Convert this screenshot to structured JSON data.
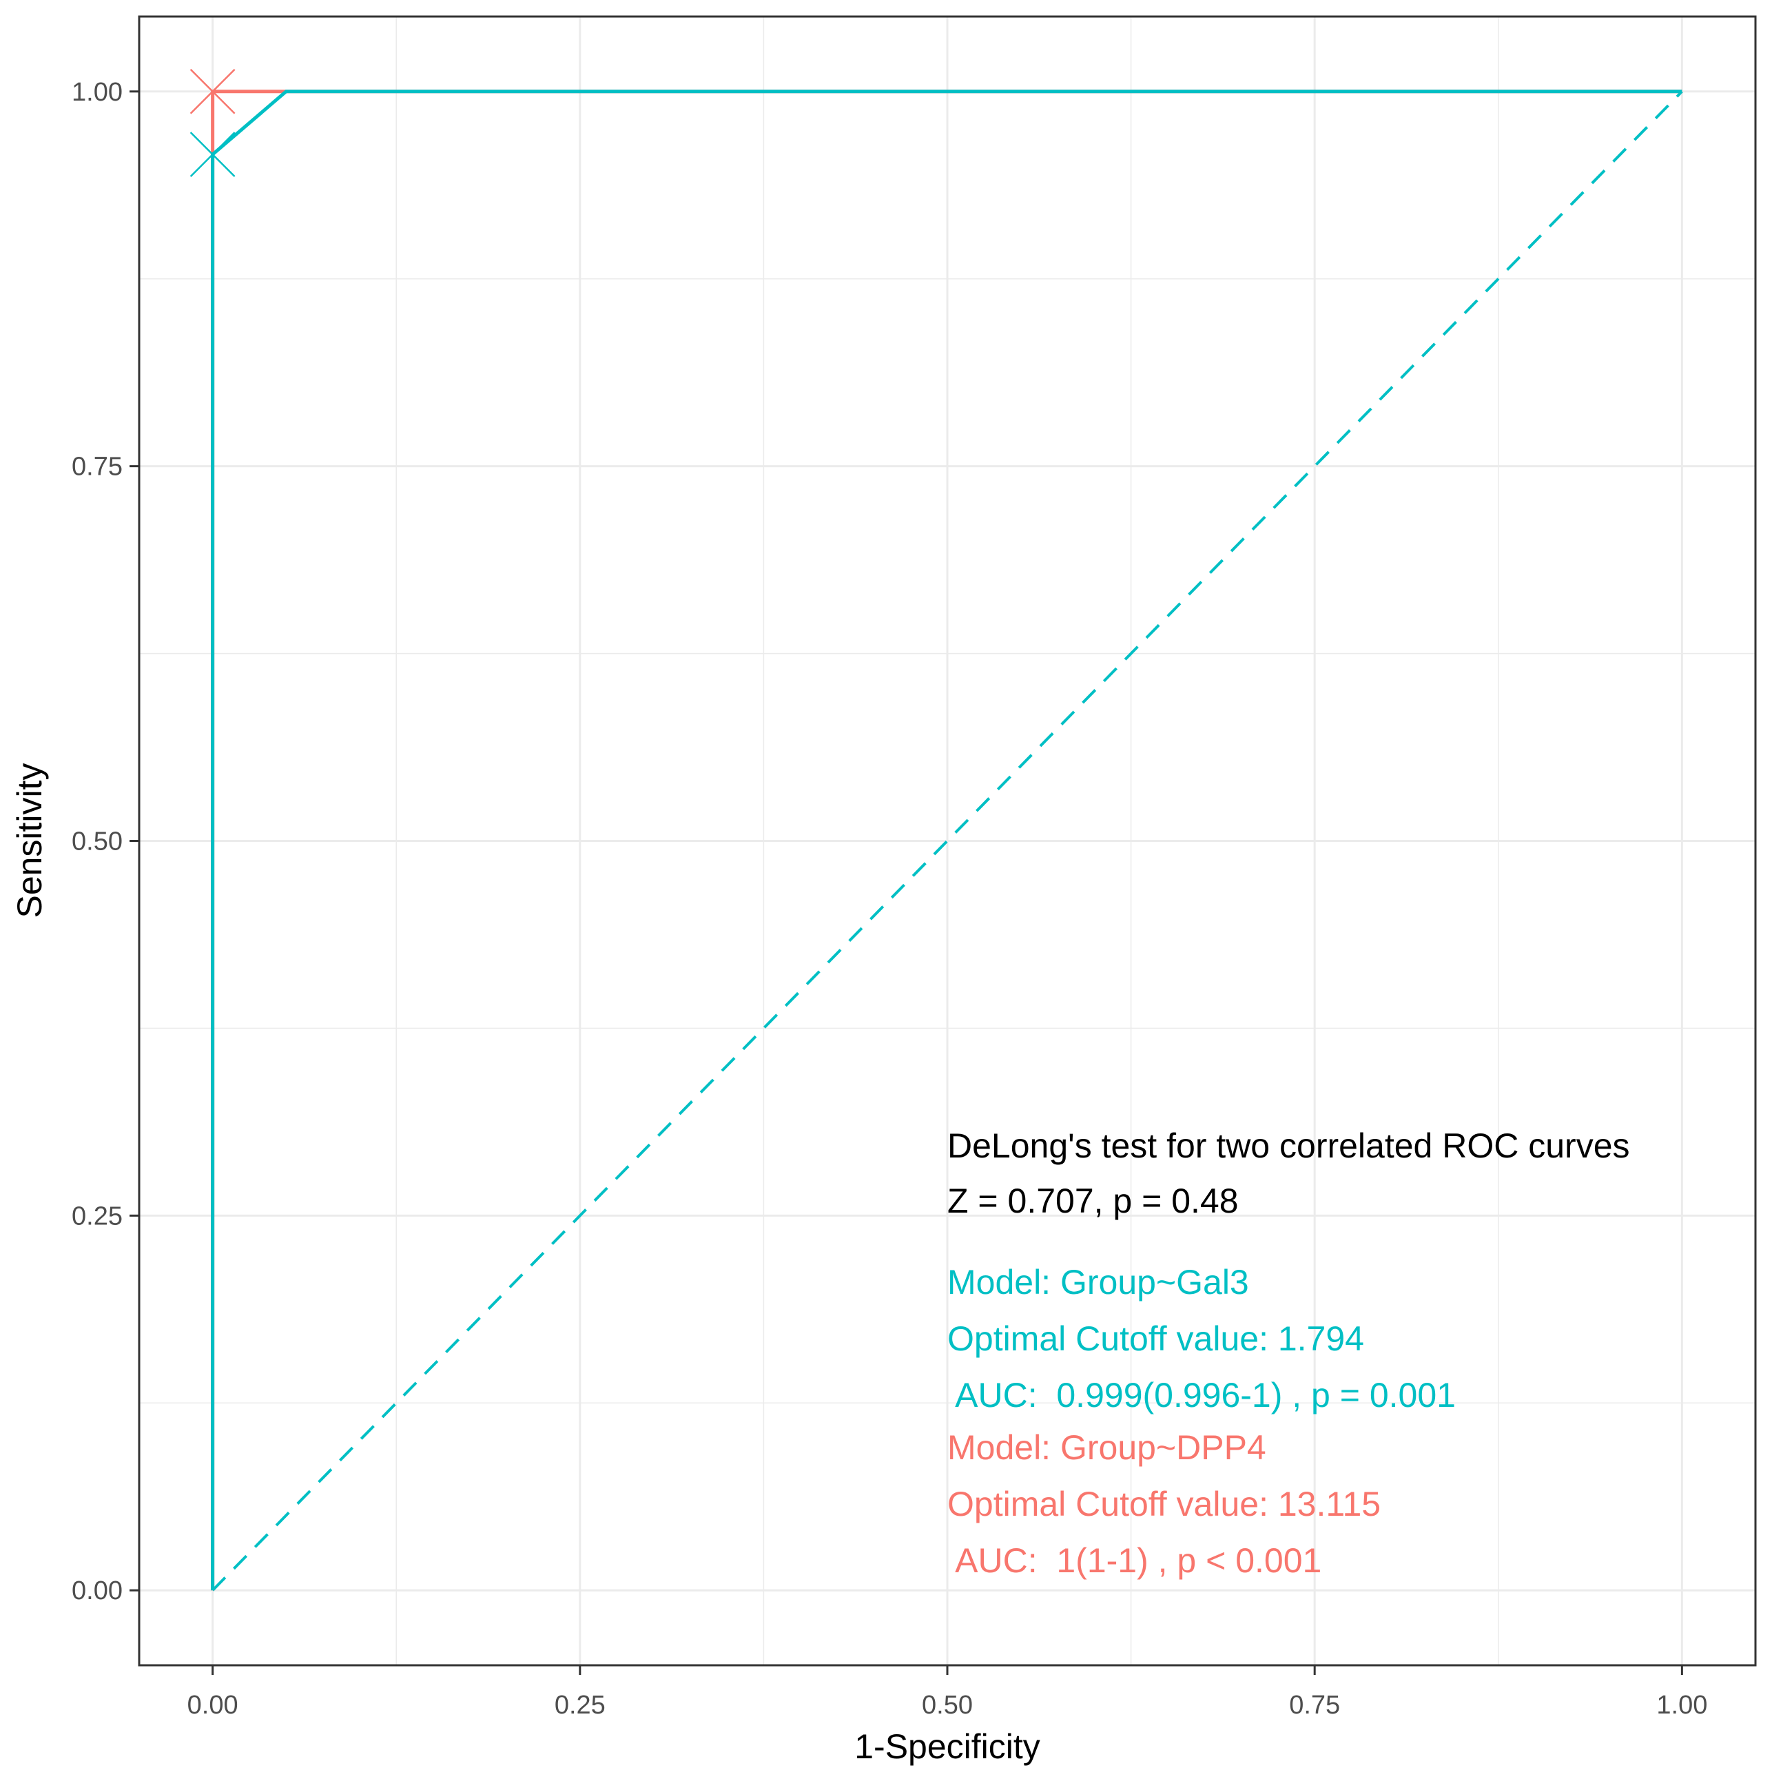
{
  "chart_data": {
    "type": "line",
    "xlabel": "1-Specificity",
    "ylabel": "Sensitivity",
    "xlim": [
      -0.05,
      1.05
    ],
    "ylim": [
      -0.05,
      1.05
    ],
    "x_ticks": [
      "0.00",
      "0.25",
      "0.50",
      "0.75",
      "1.00"
    ],
    "y_ticks": [
      "0.00",
      "0.25",
      "0.50",
      "0.75",
      "1.00"
    ],
    "grid": true,
    "series": [
      {
        "name": "Group~DPP4",
        "color": "#F8766D",
        "points": [
          [
            0,
            0
          ],
          [
            0,
            1
          ],
          [
            1,
            1
          ]
        ],
        "optimal_point": [
          0,
          1
        ]
      },
      {
        "name": "Group~Gal3",
        "color": "#00BFC4",
        "points": [
          [
            0,
            0
          ],
          [
            0,
            0.958
          ],
          [
            0.05,
            1
          ],
          [
            1,
            1
          ]
        ],
        "optimal_point": [
          0,
          0.958
        ]
      }
    ],
    "reference_line": {
      "points": [
        [
          0,
          0
        ],
        [
          1,
          1
        ]
      ],
      "style": "dashed",
      "color": "#00BFC4"
    },
    "annotations": {
      "delong_title": "DeLong's test for two correlated ROC curves",
      "delong_stats": "Z = 0.707, p = 0.48",
      "gal3_model": "Model: Group~Gal3",
      "gal3_cutoff": "Optimal Cutoff value:  1.794",
      "gal3_auc": " AUC:  0.999(0.996-1) , p = 0.001",
      "dpp4_model": "Model: Group~DPP4",
      "dpp4_cutoff": "Optimal Cutoff value:  13.115",
      "dpp4_auc": " AUC:  1(1-1) , p < 0.001"
    },
    "colors": {
      "gal3": "#00BFC4",
      "dpp4": "#F8766D",
      "stats_text": "#000000"
    }
  }
}
